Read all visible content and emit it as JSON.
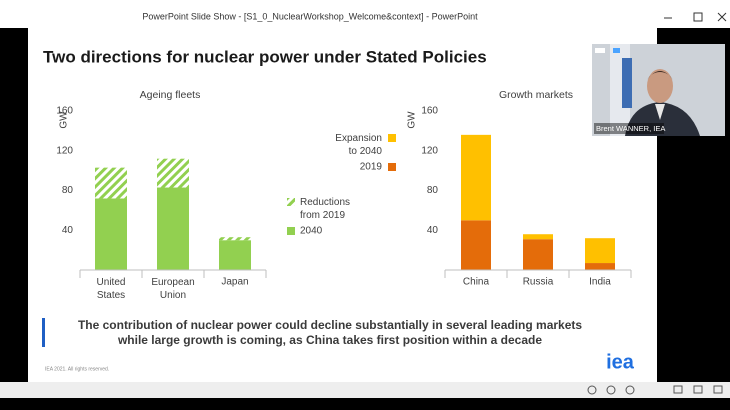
{
  "window": {
    "title": "PowerPoint Slide Show - [S1_0_NuclearWorkshop_Welcome&context] - PowerPoint"
  },
  "slide": {
    "title": "Two directions for nuclear power under Stated Policies",
    "message": [
      "The contribution of nuclear power could decline substantially in several leading markets",
      "while large growth is coming, as China takes first position within a decade"
    ],
    "footer": "IEA 2021. All rights reserved.",
    "logo": "iea"
  },
  "video": {
    "name": "Brent WANNER, IEA"
  },
  "chart_data": [
    {
      "type": "bar",
      "stacked": true,
      "title": "Ageing fleets",
      "y_label": "GW",
      "categories": [
        "United States",
        "European Union",
        "Japan"
      ],
      "series": [
        {
          "name": "2040",
          "color": "#92d050",
          "values": [
            72,
            83,
            30
          ]
        },
        {
          "name": "Reductions from 2019",
          "color": "#92d050",
          "pattern": "hatch",
          "values": [
            31,
            29,
            3
          ]
        }
      ],
      "ylim": [
        0,
        160
      ],
      "yticks": [
        40,
        80,
        120,
        160
      ]
    },
    {
      "type": "bar",
      "stacked": true,
      "title": "Growth markets",
      "y_label": "GW",
      "categories": [
        "China",
        "Russia",
        "India"
      ],
      "series": [
        {
          "name": "2019",
          "color": "#e46c0a",
          "values": [
            50,
            31,
            7
          ]
        },
        {
          "name": "Expansion to 2040",
          "color": "#ffc000",
          "values": [
            86,
            5,
            25
          ]
        }
      ],
      "ylim": [
        0,
        160
      ],
      "yticks": [
        40,
        80,
        120,
        160
      ]
    }
  ]
}
